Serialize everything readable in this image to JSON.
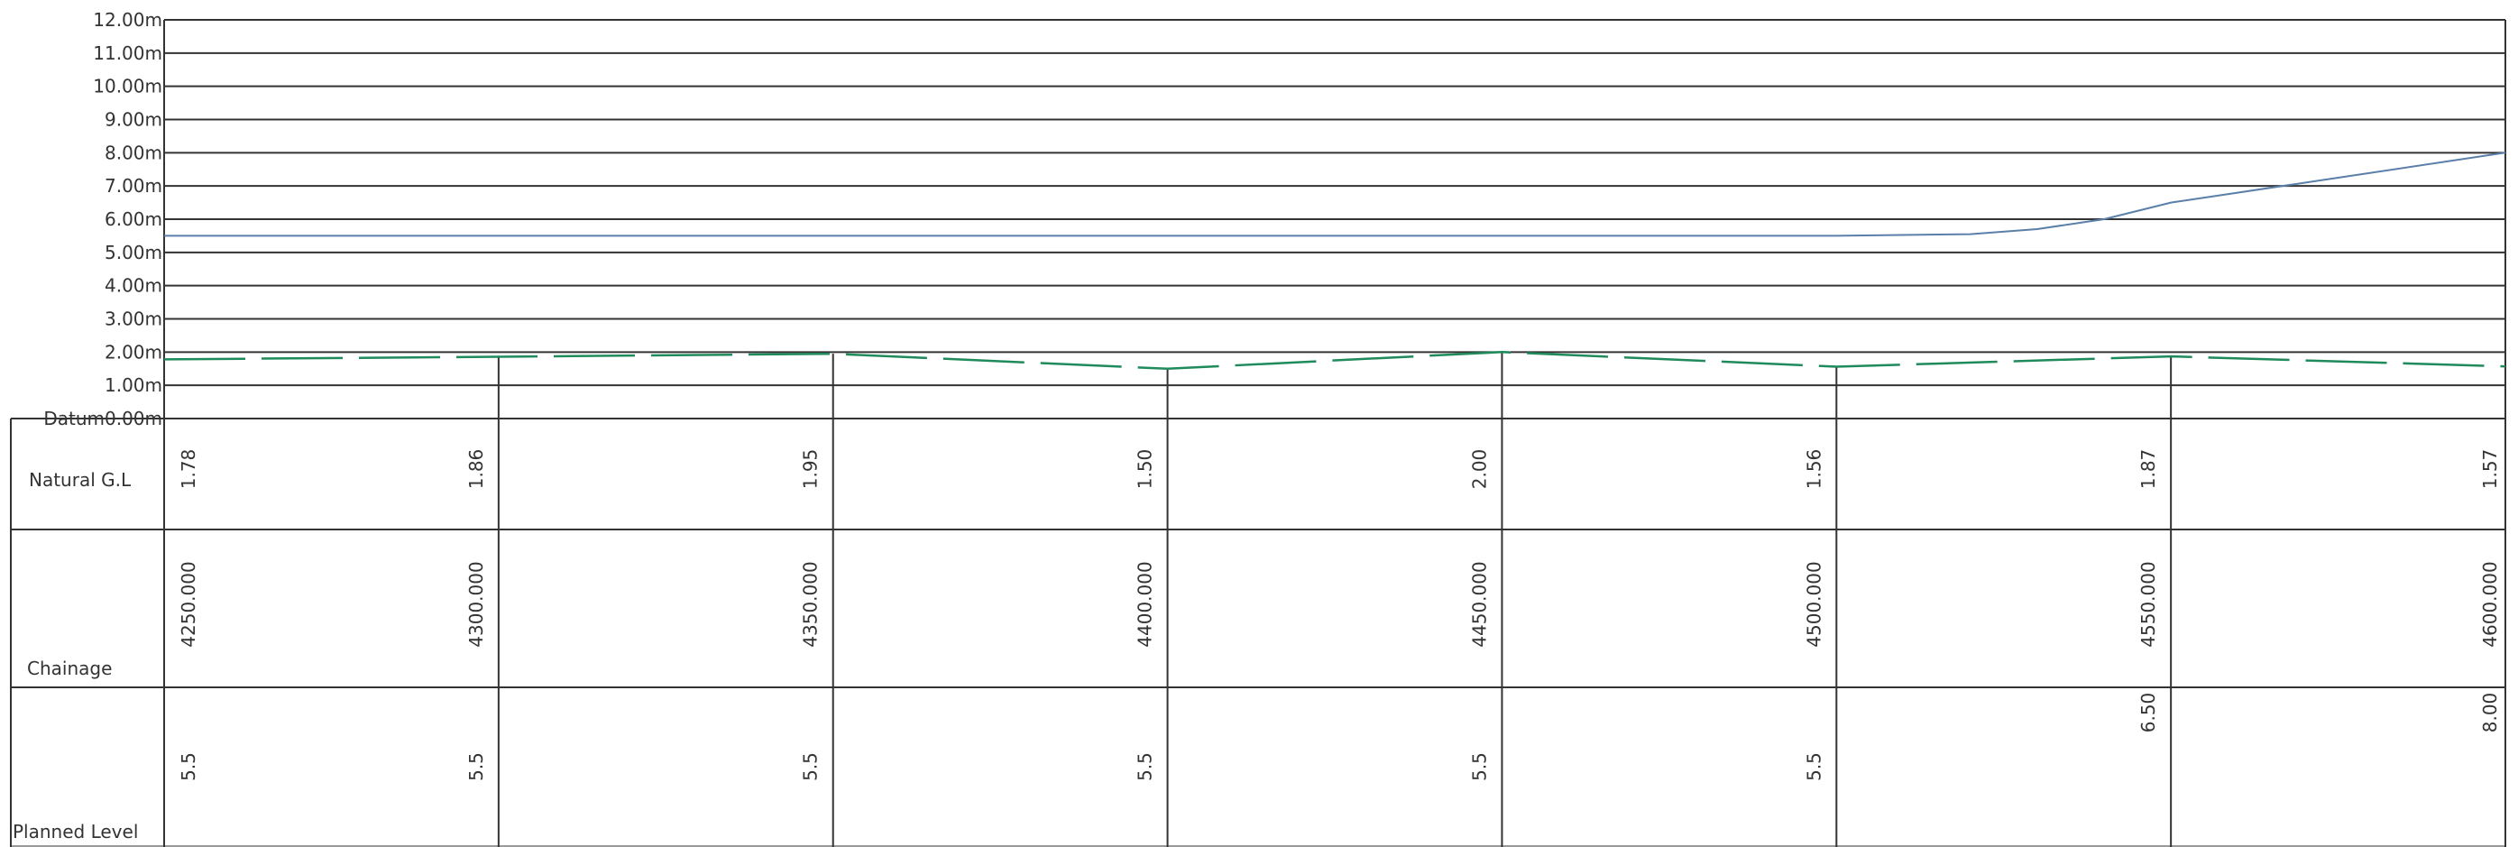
{
  "level_axis": {
    "labels": [
      "12.00m",
      "11.00m",
      "10.00m",
      "9.00m",
      "8.00m",
      "7.00m",
      "6.00m",
      "5.00m",
      "4.00m",
      "3.00m",
      "2.00m",
      "1.00m",
      "Datum0.00m"
    ],
    "values": [
      12,
      11,
      10,
      9,
      8,
      7,
      6,
      5,
      4,
      3,
      2,
      1,
      0
    ],
    "ylim": [
      0,
      12
    ]
  },
  "colors": {
    "grid": "#333333",
    "ground_line": "#1f8a5b",
    "planned_line": "#5a7fa8",
    "text": "#333333"
  },
  "table": {
    "natural_gl_title": "Natural G.L",
    "chainage_title": "Chainage",
    "planned_level_title": "Planned Level"
  },
  "chart_data": {
    "type": "line",
    "xlim": [
      4250,
      4600
    ],
    "ylim": [
      0,
      12
    ],
    "chainage_labels": [
      "4250.000",
      "4300.000",
      "4350.000",
      "4400.000",
      "4450.000",
      "4500.000",
      "4550.000",
      "4600.000"
    ],
    "natural_gl_labels": [
      "1.78",
      "1.86",
      "1.95",
      "1.50",
      "2.00",
      "1.56",
      "1.87",
      "1.57"
    ],
    "planned_level_labels": [
      "5.5",
      "5.5",
      "5.5",
      "5.5",
      "5.5",
      "5.5",
      "6.50",
      "8.00"
    ],
    "series": [
      {
        "name": "Natural G.L",
        "style": "dashed",
        "x": [
          4250,
          4300,
          4350,
          4400,
          4450,
          4500,
          4550,
          4600
        ],
        "y": [
          1.78,
          1.86,
          1.95,
          1.5,
          2.0,
          1.56,
          1.87,
          1.57
        ]
      },
      {
        "name": "Planned Level",
        "style": "solid",
        "x": [
          4250,
          4300,
          4350,
          4400,
          4450,
          4500,
          4520,
          4530,
          4540,
          4550,
          4575,
          4600
        ],
        "y": [
          5.5,
          5.5,
          5.5,
          5.5,
          5.5,
          5.5,
          5.55,
          5.7,
          6.0,
          6.5,
          7.25,
          8.0
        ]
      }
    ]
  }
}
